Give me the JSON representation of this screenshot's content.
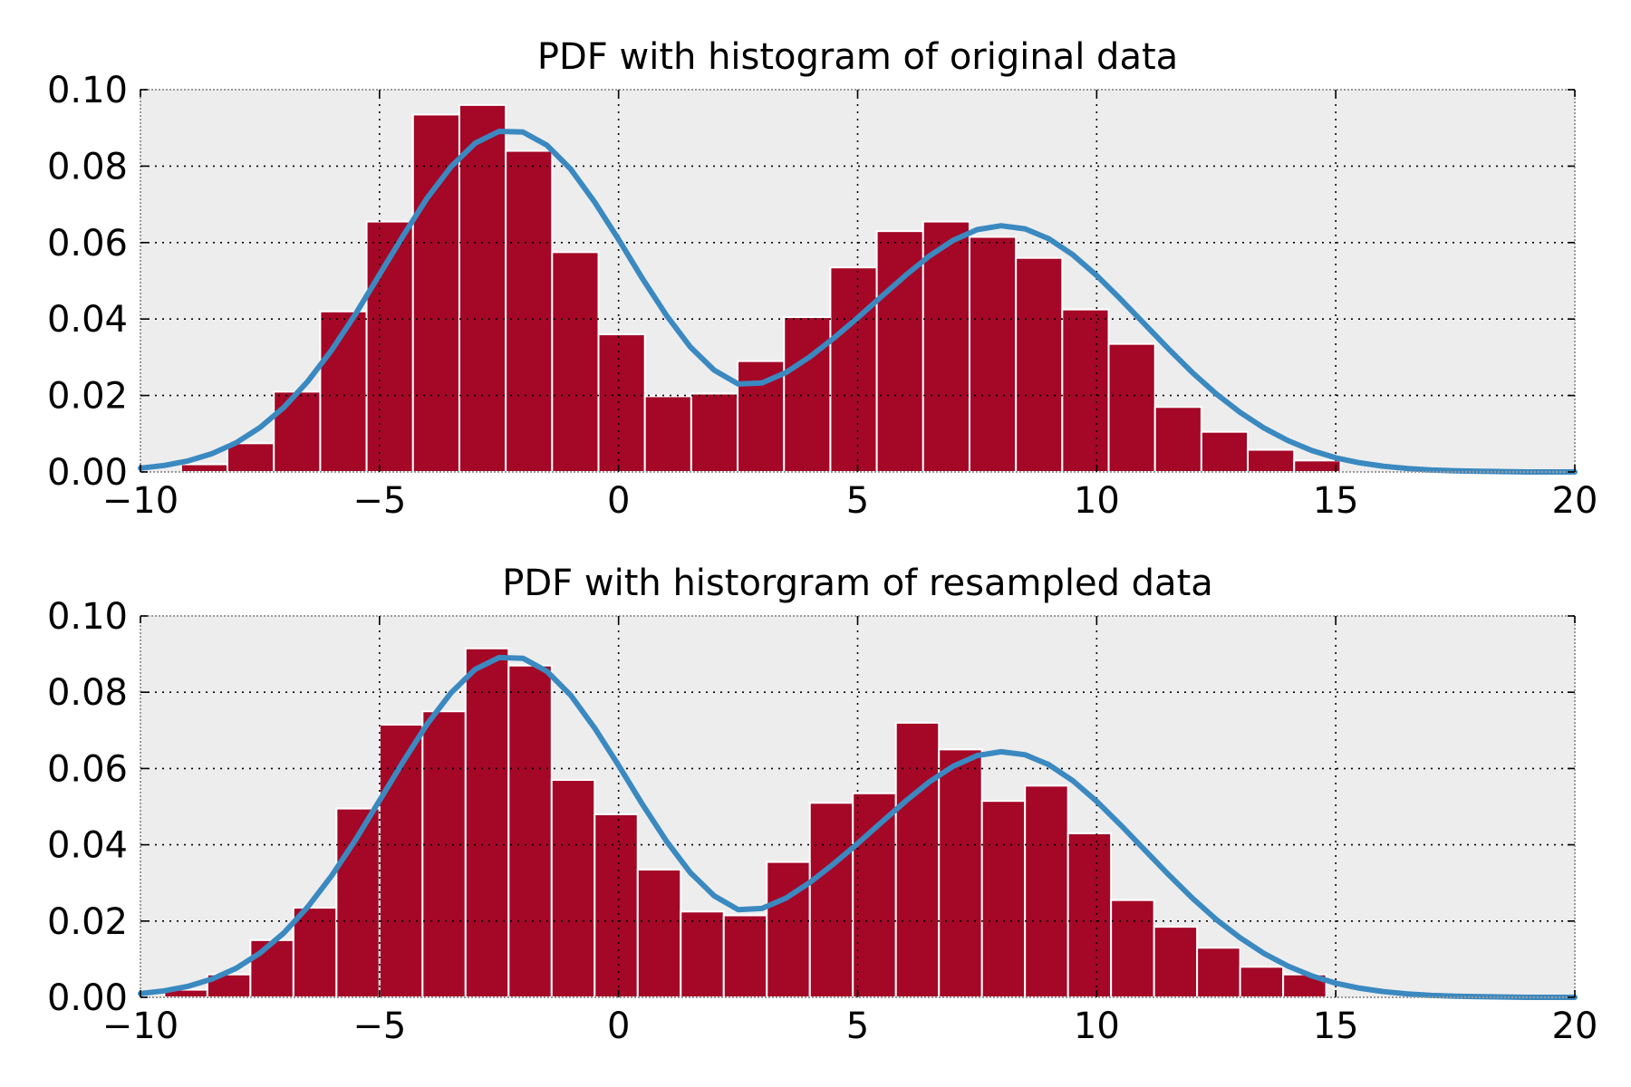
{
  "colors": {
    "bar": "#a50727",
    "line": "#3a89c0",
    "axes_bg": "#ededed"
  },
  "chart_data": [
    {
      "type": "bar",
      "title": "PDF with histogram of original data",
      "xlabel": "",
      "ylabel": "",
      "xlim": [
        -10,
        20
      ],
      "ylim": [
        0,
        0.1
      ],
      "xticks": [
        -10,
        -5,
        0,
        5,
        10,
        15,
        20
      ],
      "xtick_labels": [
        "−10",
        "−5",
        "0",
        "5",
        "10",
        "15",
        "20"
      ],
      "yticks": [
        0,
        0.02,
        0.04,
        0.06,
        0.08,
        0.1
      ],
      "ytick_labels": [
        "0.00",
        "0.02",
        "0.04",
        "0.06",
        "0.08",
        "0.10"
      ],
      "grid": true,
      "bin_edges": [
        -9.15,
        -8.18,
        -7.21,
        -6.24,
        -5.27,
        -4.3,
        -3.33,
        -2.36,
        -1.39,
        -0.42,
        0.55,
        1.52,
        2.49,
        3.46,
        4.43,
        5.4,
        6.37,
        7.34,
        8.31,
        9.28,
        10.25,
        11.22,
        12.19,
        13.16,
        14.13,
        15.1
      ],
      "values": [
        0.002,
        0.0075,
        0.021,
        0.042,
        0.0655,
        0.0935,
        0.096,
        0.084,
        0.0575,
        0.036,
        0.0198,
        0.0205,
        0.029,
        0.0405,
        0.0535,
        0.063,
        0.0655,
        0.0615,
        0.056,
        0.0425,
        0.0335,
        0.017,
        0.0105,
        0.0058,
        0.003
      ],
      "pdf_label": ""
    },
    {
      "type": "bar",
      "title": "PDF with historgram of resampled data",
      "xlabel": "",
      "ylabel": "",
      "xlim": [
        -10,
        20
      ],
      "ylim": [
        0,
        0.1
      ],
      "xticks": [
        -10,
        -5,
        0,
        5,
        10,
        15,
        20
      ],
      "xtick_labels": [
        "−10",
        "−5",
        "0",
        "5",
        "10",
        "15",
        "20"
      ],
      "yticks": [
        0,
        0.02,
        0.04,
        0.06,
        0.08,
        0.1
      ],
      "ytick_labels": [
        "0.00",
        "0.02",
        "0.04",
        "0.06",
        "0.08",
        "0.10"
      ],
      "grid": true,
      "bin_edges": [
        -9.5,
        -8.6,
        -7.7,
        -6.8,
        -5.9,
        -5.0,
        -4.1,
        -3.2,
        -2.3,
        -1.4,
        -0.5,
        0.4,
        1.3,
        2.2,
        3.1,
        4.0,
        4.9,
        5.8,
        6.7,
        7.6,
        8.5,
        9.4,
        10.3,
        11.2,
        12.1,
        13.0,
        13.9,
        14.8
      ],
      "values": [
        0.002,
        0.006,
        0.015,
        0.0235,
        0.0495,
        0.0715,
        0.075,
        0.0915,
        0.087,
        0.057,
        0.048,
        0.0335,
        0.0225,
        0.0215,
        0.0355,
        0.051,
        0.0535,
        0.072,
        0.065,
        0.0515,
        0.0555,
        0.043,
        0.0255,
        0.0185,
        0.013,
        0.008,
        0.006
      ],
      "pdf_label": ""
    }
  ],
  "pdf_curve": {
    "x": [
      -10,
      -9.5,
      -9,
      -8.5,
      -8,
      -7.5,
      -7,
      -6.5,
      -6,
      -5.5,
      -5,
      -4.5,
      -4,
      -3.5,
      -3,
      -2.5,
      -2,
      -1.5,
      -1,
      -0.5,
      0,
      0.5,
      1,
      1.5,
      2,
      2.5,
      3,
      3.5,
      4,
      4.5,
      5,
      5.5,
      6,
      6.5,
      7,
      7.5,
      8,
      8.5,
      9,
      9.5,
      10,
      10.5,
      11,
      11.5,
      12,
      12.5,
      13,
      13.5,
      14,
      14.5,
      15,
      15.5,
      16,
      16.5,
      17,
      17.5,
      18,
      18.5,
      19,
      19.5,
      20
    ],
    "y": [
      0.001,
      0.0017,
      0.0029,
      0.0048,
      0.0076,
      0.0116,
      0.0169,
      0.0237,
      0.0319,
      0.0413,
      0.0516,
      0.0619,
      0.0717,
      0.0799,
      0.086,
      0.0891,
      0.0889,
      0.0855,
      0.0792,
      0.0706,
      0.0608,
      0.0506,
      0.041,
      0.0327,
      0.0266,
      0.023,
      0.0233,
      0.026,
      0.0301,
      0.035,
      0.0403,
      0.0459,
      0.0514,
      0.0565,
      0.0606,
      0.0634,
      0.0644,
      0.0636,
      0.061,
      0.0568,
      0.0514,
      0.0452,
      0.0387,
      0.0322,
      0.026,
      0.0204,
      0.0156,
      0.0115,
      0.0082,
      0.0056,
      0.0037,
      0.0024,
      0.0015,
      0.0009,
      0.0005,
      0.0003,
      0.0002,
      0.0001,
      0.0,
      0.0,
      0.0
    ]
  }
}
